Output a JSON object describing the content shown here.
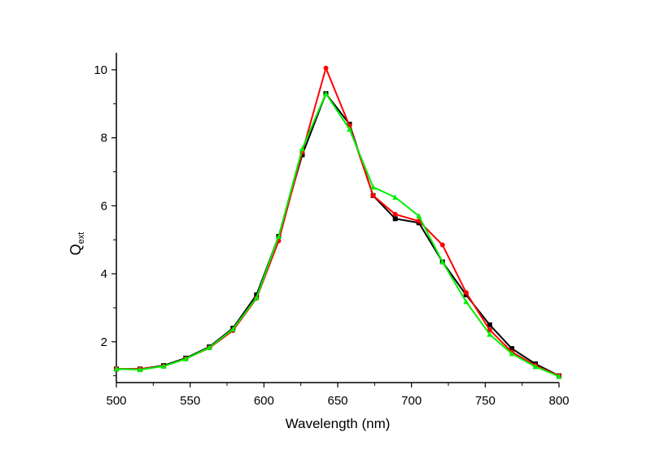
{
  "chart_data": {
    "type": "line",
    "title": "",
    "xlabel": "Wavelength (nm)",
    "ylabel": {
      "main": "Q",
      "subscript": "ext"
    },
    "xlim": [
      500,
      800
    ],
    "ylim": [
      0.8,
      10.5
    ],
    "xticks": [
      500,
      550,
      600,
      650,
      700,
      750,
      800
    ],
    "yticks": [
      2,
      4,
      6,
      8,
      10
    ],
    "grid": false,
    "legend": "none",
    "x": [
      500,
      516,
      532,
      547,
      563,
      579,
      595,
      610,
      626,
      642,
      658,
      674,
      689,
      705,
      721,
      737,
      753,
      768,
      784,
      800
    ],
    "series": [
      {
        "color": "#000000",
        "marker": "square",
        "values": [
          1.2,
          1.2,
          1.3,
          1.52,
          1.85,
          2.4,
          3.38,
          5.1,
          7.5,
          9.3,
          8.4,
          6.3,
          5.62,
          5.5,
          4.35,
          3.38,
          2.5,
          1.8,
          1.35,
          1.0
        ]
      },
      {
        "color": "#ff0000",
        "marker": "circle",
        "values": [
          1.2,
          1.2,
          1.28,
          1.5,
          1.82,
          2.33,
          3.28,
          4.97,
          7.58,
          10.05,
          8.35,
          6.3,
          5.75,
          5.55,
          4.85,
          3.45,
          2.35,
          1.7,
          1.3,
          1.0
        ]
      },
      {
        "color": "#00ee00",
        "marker": "triangle",
        "values": [
          1.2,
          1.18,
          1.28,
          1.5,
          1.83,
          2.37,
          3.3,
          5.1,
          7.68,
          9.3,
          8.25,
          6.55,
          6.25,
          5.7,
          4.35,
          3.18,
          2.22,
          1.65,
          1.27,
          0.98
        ]
      }
    ]
  }
}
